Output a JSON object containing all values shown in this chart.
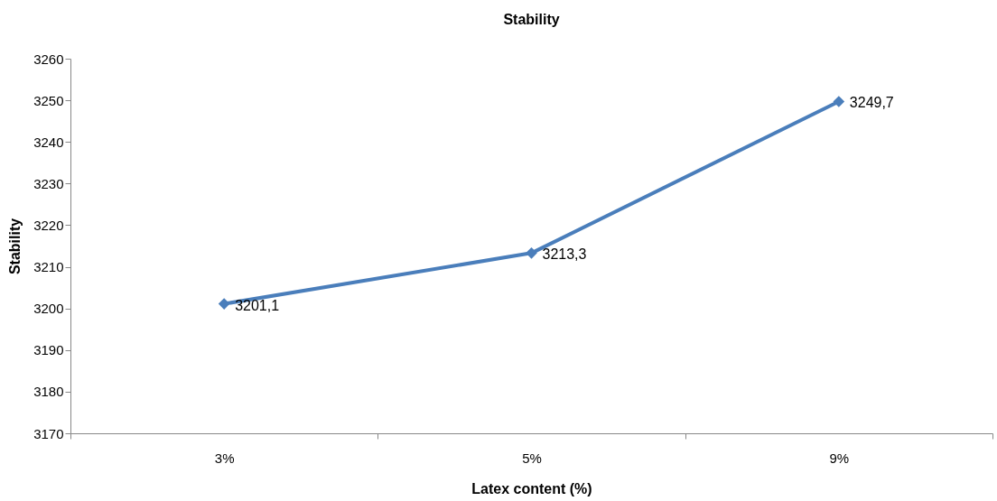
{
  "chart_data": {
    "type": "line",
    "title": "Stability",
    "xlabel": "Latex content (%)",
    "ylabel": "Stability",
    "categories": [
      "3%",
      "5%",
      "9%"
    ],
    "series": [
      {
        "color": "#4a7ebb",
        "values": [
          3201.1,
          3213.3,
          3249.7
        ],
        "value_labels": [
          "3201,1",
          "3213,3",
          "3249,7"
        ]
      }
    ],
    "ylim": [
      3170,
      3260
    ],
    "yticks": [
      3170,
      3180,
      3190,
      3200,
      3210,
      3220,
      3230,
      3240,
      3250,
      3260
    ],
    "marker": "diamond",
    "line_style": "solid"
  }
}
